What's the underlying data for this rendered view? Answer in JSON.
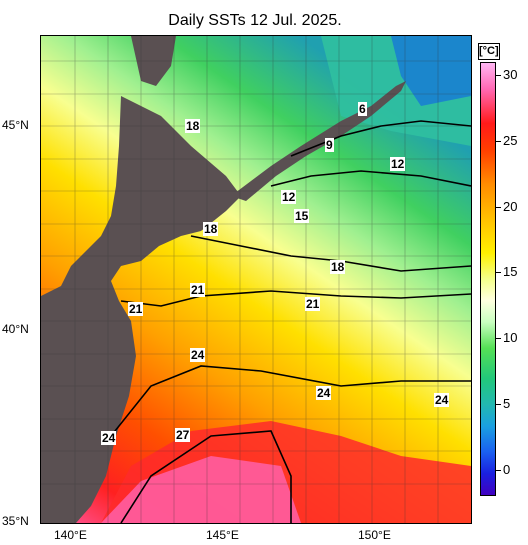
{
  "title": "Daily SSTs 12 Jul. 2025.",
  "unit": "[°C]",
  "latitude_labels": [
    "45°N",
    "40°N",
    "35°N"
  ],
  "longitude_labels": [
    "140°E",
    "145°E",
    "150°E"
  ],
  "colorbar_ticks": [
    "30",
    "25",
    "20",
    "15",
    "10",
    "5",
    "0"
  ],
  "contour_labels": [
    "6",
    "9",
    "12",
    "12",
    "15",
    "18",
    "18",
    "18",
    "21",
    "21",
    "21",
    "24",
    "24",
    "24",
    "24",
    "27"
  ],
  "colors": {
    "land": "#5a5052",
    "warm": "#ff3000",
    "hot": "#ff60b0",
    "mid": "#ffb000",
    "cool": "#fff060",
    "cold": "#40d060",
    "coldest": "#1a80d0"
  }
}
